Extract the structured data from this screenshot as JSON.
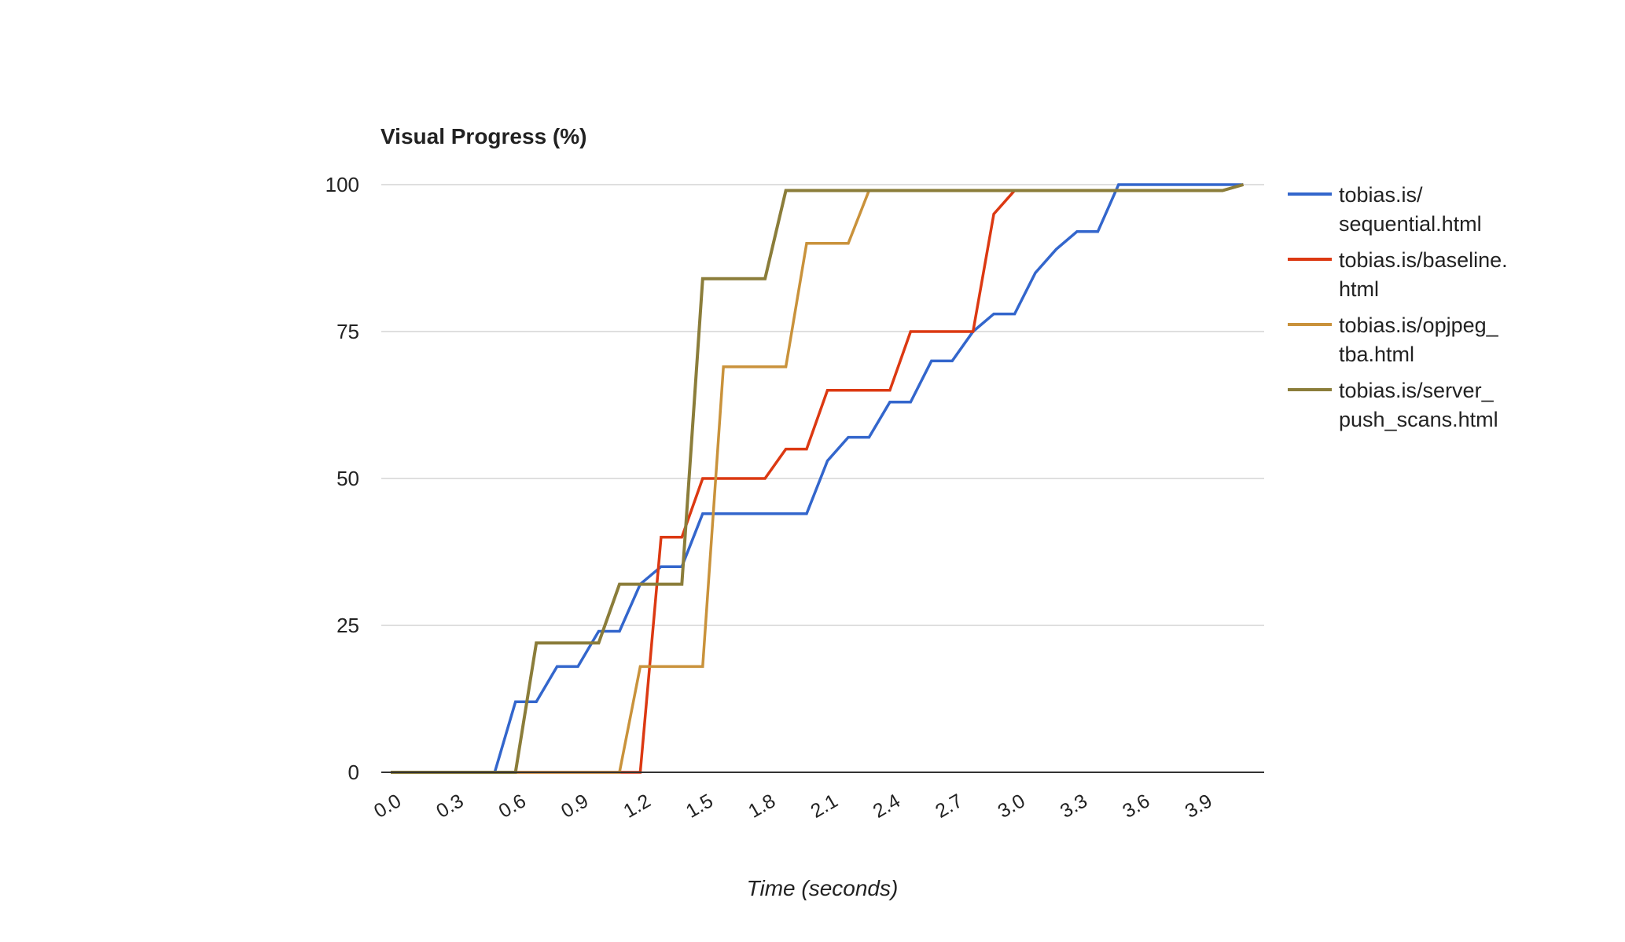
{
  "chart_data": {
    "type": "line",
    "title": "Visual Progress (%)",
    "xlabel": "Time (seconds)",
    "ylabel": "",
    "xlim": [
      0.0,
      4.2
    ],
    "ylim": [
      0,
      100
    ],
    "x_ticks": [
      "0.0",
      "0.3",
      "0.6",
      "0.9",
      "1.2",
      "1.5",
      "1.8",
      "2.1",
      "2.4",
      "2.7",
      "3.0",
      "3.3",
      "3.6",
      "3.9"
    ],
    "y_ticks": [
      "0",
      "25",
      "50",
      "75",
      "100"
    ],
    "grid": true,
    "legend_position": "right",
    "series": [
      {
        "name": "tobias.is/sequential.html",
        "legend_lines": [
          "tobias.is/",
          "sequential.html"
        ],
        "color": "#3366cc",
        "points": [
          [
            0.0,
            0
          ],
          [
            0.5,
            0
          ],
          [
            0.6,
            12
          ],
          [
            0.7,
            12
          ],
          [
            0.8,
            18
          ],
          [
            0.9,
            18
          ],
          [
            1.0,
            24
          ],
          [
            1.1,
            24
          ],
          [
            1.2,
            32
          ],
          [
            1.3,
            35
          ],
          [
            1.4,
            35
          ],
          [
            1.5,
            44
          ],
          [
            1.6,
            44
          ],
          [
            2.0,
            44
          ],
          [
            2.1,
            53
          ],
          [
            2.2,
            57
          ],
          [
            2.3,
            57
          ],
          [
            2.4,
            63
          ],
          [
            2.5,
            63
          ],
          [
            2.6,
            70
          ],
          [
            2.7,
            70
          ],
          [
            2.8,
            75
          ],
          [
            2.9,
            78
          ],
          [
            3.0,
            78
          ],
          [
            3.1,
            85
          ],
          [
            3.2,
            89
          ],
          [
            3.3,
            92
          ],
          [
            3.4,
            92
          ],
          [
            3.5,
            100
          ],
          [
            3.9,
            100
          ],
          [
            4.1,
            100
          ]
        ]
      },
      {
        "name": "tobias.is/baseline.html",
        "legend_lines": [
          "tobias.is/baseline.",
          "html"
        ],
        "color": "#dc3912",
        "points": [
          [
            0.0,
            0
          ],
          [
            1.2,
            0
          ],
          [
            1.3,
            40
          ],
          [
            1.4,
            40
          ],
          [
            1.5,
            50
          ],
          [
            1.6,
            50
          ],
          [
            1.8,
            50
          ],
          [
            1.9,
            55
          ],
          [
            2.0,
            55
          ],
          [
            2.1,
            65
          ],
          [
            2.2,
            65
          ],
          [
            2.4,
            65
          ],
          [
            2.5,
            75
          ],
          [
            2.6,
            75
          ],
          [
            2.8,
            75
          ],
          [
            2.9,
            95
          ],
          [
            3.0,
            99
          ],
          [
            4.0,
            99
          ],
          [
            4.1,
            100
          ]
        ]
      },
      {
        "name": "tobias.is/opjpeg_tba.html",
        "legend_lines": [
          "tobias.is/opjpeg_",
          "tba.html"
        ],
        "color": "#c9923b",
        "points": [
          [
            0.0,
            0
          ],
          [
            1.1,
            0
          ],
          [
            1.2,
            18
          ],
          [
            1.3,
            18
          ],
          [
            1.5,
            18
          ],
          [
            1.6,
            69
          ],
          [
            1.7,
            69
          ],
          [
            1.9,
            69
          ],
          [
            2.0,
            90
          ],
          [
            2.1,
            90
          ],
          [
            2.2,
            90
          ],
          [
            2.3,
            99
          ],
          [
            2.4,
            99
          ],
          [
            4.0,
            99
          ],
          [
            4.1,
            100
          ]
        ]
      },
      {
        "name": "tobias.is/server_push_scans.html",
        "legend_lines": [
          "tobias.is/server_",
          "push_scans.html"
        ],
        "color": "#8b7d3a",
        "points": [
          [
            0.0,
            0
          ],
          [
            0.6,
            0
          ],
          [
            0.7,
            22
          ],
          [
            0.8,
            22
          ],
          [
            1.0,
            22
          ],
          [
            1.1,
            32
          ],
          [
            1.2,
            32
          ],
          [
            1.4,
            32
          ],
          [
            1.5,
            84
          ],
          [
            1.6,
            84
          ],
          [
            1.8,
            84
          ],
          [
            1.9,
            99
          ],
          [
            2.0,
            99
          ],
          [
            3.9,
            99
          ],
          [
            4.0,
            99
          ],
          [
            4.1,
            100
          ]
        ]
      }
    ]
  }
}
